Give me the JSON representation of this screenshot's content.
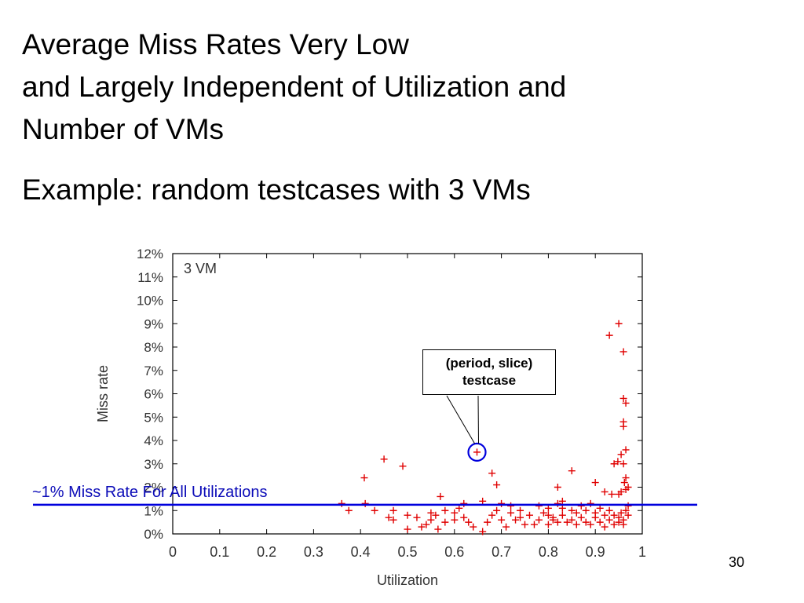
{
  "slide": {
    "title_lines": [
      "Average Miss Rates Very Low",
      "and Largely Independent of Utilization and",
      "Number of VMs"
    ],
    "subtitle": "Example: random testcases with 3 VMs",
    "page_number": "30",
    "colors": {
      "point": "#e00000",
      "reference_line": "#0000dd",
      "annotation_text": "#0b0bb8"
    }
  },
  "callout": {
    "line1": "(period, slice)",
    "line2": "testcase"
  },
  "annotation": {
    "text": "~1% Miss Rate For All Utilizations",
    "line_value": 0.0125
  },
  "chart_data": {
    "type": "scatter",
    "inset_label": "3 VM",
    "xlabel": "Utilization",
    "ylabel": "Miss rate",
    "xlim": [
      0,
      1
    ],
    "ylim": [
      0,
      0.12
    ],
    "xticks": [
      0,
      0.1,
      0.2,
      0.3,
      0.4,
      0.5,
      0.6,
      0.7,
      0.8,
      0.9,
      1
    ],
    "xtick_labels": [
      "0",
      "0.1",
      "0.2",
      "0.3",
      "0.4",
      "0.5",
      "0.6",
      "0.7",
      "0.8",
      "0.9",
      "1"
    ],
    "yticks": [
      0,
      0.01,
      0.02,
      0.03,
      0.04,
      0.05,
      0.06,
      0.07,
      0.08,
      0.09,
      0.1,
      0.11,
      0.12
    ],
    "ytick_labels": [
      "0%",
      "1%",
      "2%",
      "3%",
      "4%",
      "5%",
      "6%",
      "7%",
      "8%",
      "9%",
      "10%",
      "11%",
      "12%"
    ],
    "grid": false,
    "highlighted_point": [
      0.648,
      0.035
    ],
    "series": [
      {
        "marker": "+",
        "points": [
          [
            0.95,
            0.09
          ],
          [
            0.93,
            0.085
          ],
          [
            0.96,
            0.078
          ],
          [
            0.96,
            0.058
          ],
          [
            0.965,
            0.056
          ],
          [
            0.96,
            0.048
          ],
          [
            0.96,
            0.046
          ],
          [
            0.965,
            0.036
          ],
          [
            0.955,
            0.034
          ],
          [
            0.948,
            0.031
          ],
          [
            0.96,
            0.03
          ],
          [
            0.94,
            0.03
          ],
          [
            0.965,
            0.024
          ],
          [
            0.962,
            0.022
          ],
          [
            0.97,
            0.02
          ],
          [
            0.965,
            0.019
          ],
          [
            0.955,
            0.018
          ],
          [
            0.935,
            0.017
          ],
          [
            0.92,
            0.018
          ],
          [
            0.95,
            0.017
          ],
          [
            0.45,
            0.032
          ],
          [
            0.49,
            0.029
          ],
          [
            0.408,
            0.024
          ],
          [
            0.85,
            0.027
          ],
          [
            0.68,
            0.026
          ],
          [
            0.69,
            0.021
          ],
          [
            0.82,
            0.02
          ],
          [
            0.9,
            0.022
          ],
          [
            0.648,
            0.035
          ],
          [
            0.36,
            0.013
          ],
          [
            0.41,
            0.013
          ],
          [
            0.375,
            0.01
          ],
          [
            0.43,
            0.01
          ],
          [
            0.47,
            0.01
          ],
          [
            0.46,
            0.007
          ],
          [
            0.47,
            0.006
          ],
          [
            0.5,
            0.002
          ],
          [
            0.52,
            0.007
          ],
          [
            0.53,
            0.003
          ],
          [
            0.54,
            0.004
          ],
          [
            0.55,
            0.006
          ],
          [
            0.56,
            0.008
          ],
          [
            0.565,
            0.002
          ],
          [
            0.57,
            0.016
          ],
          [
            0.58,
            0.01
          ],
          [
            0.6,
            0.006
          ],
          [
            0.61,
            0.011
          ],
          [
            0.62,
            0.007
          ],
          [
            0.63,
            0.005
          ],
          [
            0.64,
            0.003
          ],
          [
            0.66,
            0.001
          ],
          [
            0.67,
            0.005
          ],
          [
            0.68,
            0.008
          ],
          [
            0.69,
            0.01
          ],
          [
            0.7,
            0.006
          ],
          [
            0.71,
            0.003
          ],
          [
            0.72,
            0.012
          ],
          [
            0.73,
            0.006
          ],
          [
            0.74,
            0.01
          ],
          [
            0.75,
            0.004
          ],
          [
            0.76,
            0.008
          ],
          [
            0.77,
            0.004
          ],
          [
            0.78,
            0.012
          ],
          [
            0.78,
            0.006
          ],
          [
            0.79,
            0.009
          ],
          [
            0.8,
            0.004
          ],
          [
            0.8,
            0.011
          ],
          [
            0.81,
            0.007
          ],
          [
            0.82,
            0.005
          ],
          [
            0.82,
            0.013
          ],
          [
            0.83,
            0.008
          ],
          [
            0.83,
            0.014
          ],
          [
            0.84,
            0.005
          ],
          [
            0.85,
            0.01
          ],
          [
            0.85,
            0.006
          ],
          [
            0.86,
            0.009
          ],
          [
            0.87,
            0.007
          ],
          [
            0.87,
            0.012
          ],
          [
            0.88,
            0.005
          ],
          [
            0.88,
            0.01
          ],
          [
            0.89,
            0.004
          ],
          [
            0.89,
            0.013
          ],
          [
            0.9,
            0.007
          ],
          [
            0.9,
            0.009
          ],
          [
            0.91,
            0.005
          ],
          [
            0.91,
            0.011
          ],
          [
            0.92,
            0.008
          ],
          [
            0.92,
            0.003
          ],
          [
            0.93,
            0.006
          ],
          [
            0.93,
            0.01
          ],
          [
            0.94,
            0.004
          ],
          [
            0.94,
            0.008
          ],
          [
            0.95,
            0.007
          ],
          [
            0.95,
            0.005
          ],
          [
            0.955,
            0.009
          ],
          [
            0.96,
            0.006
          ],
          [
            0.96,
            0.004
          ],
          [
            0.965,
            0.01
          ],
          [
            0.97,
            0.008
          ],
          [
            0.97,
            0.012
          ],
          [
            0.8,
            0.008
          ],
          [
            0.81,
            0.006
          ],
          [
            0.83,
            0.011
          ],
          [
            0.86,
            0.004
          ],
          [
            0.74,
            0.007
          ],
          [
            0.72,
            0.009
          ],
          [
            0.7,
            0.013
          ],
          [
            0.66,
            0.014
          ],
          [
            0.62,
            0.013
          ],
          [
            0.6,
            0.009
          ],
          [
            0.58,
            0.005
          ],
          [
            0.55,
            0.009
          ],
          [
            0.5,
            0.008
          ]
        ]
      }
    ]
  }
}
